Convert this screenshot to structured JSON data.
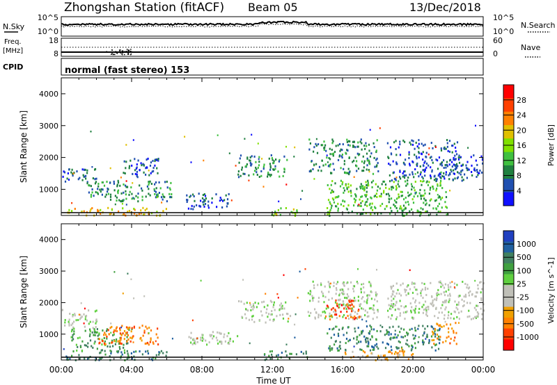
{
  "header": {
    "station": "Zhongshan Station (fitACF)",
    "beam": "Beam 05",
    "date": "13/Dec/2018"
  },
  "top_strips": {
    "nsky": {
      "label": "N.Sky",
      "left_ticks": [
        "10^5",
        "10^0"
      ],
      "right_label": "N.Search",
      "right_ticks": [
        "10^5",
        "10^0"
      ]
    },
    "freq": {
      "label_line1": "Freq.",
      "label_line2": "[MHz]",
      "left_ticks": [
        "18",
        "8"
      ],
      "right_label": "Nave",
      "right_ticks": [
        "60",
        "0"
      ]
    },
    "cpid": {
      "label": "CPID",
      "text": "normal (fast stereo) 153"
    }
  },
  "chart_data": [
    {
      "type": "heatmap",
      "name": "power",
      "ylabel": "Slant Range [km]",
      "yticks": [
        "4000",
        "3000",
        "2000",
        "1000"
      ],
      "ytick_values": [
        4000,
        3000,
        2000,
        1000
      ],
      "ylim": [
        180,
        4500
      ],
      "xlim": [
        0,
        24
      ],
      "colorbar_label": "Power [dB]",
      "colorbar_ticks": [
        "28",
        "24",
        "20",
        "16",
        "12",
        "8",
        "4"
      ],
      "colors": [
        "#ff0000",
        "#ff4000",
        "#ff8000",
        "#e0c000",
        "#80e000",
        "#40c040",
        "#208040",
        "#2050b0",
        "#1010ff"
      ],
      "blobs": [
        {
          "t0": 0.0,
          "t1": 2.0,
          "r0": 1200,
          "r1": 1700,
          "level": 7
        },
        {
          "t0": 0.2,
          "t1": 6.0,
          "r0": 200,
          "r1": 450,
          "level": 3
        },
        {
          "t0": 1.5,
          "t1": 6.3,
          "r0": 650,
          "r1": 1300,
          "level": 6
        },
        {
          "t0": 3.5,
          "t1": 5.5,
          "r0": 1400,
          "r1": 2000,
          "level": 7
        },
        {
          "t0": 10.0,
          "t1": 12.8,
          "r0": 1400,
          "r1": 2100,
          "level": 6
        },
        {
          "t0": 11.5,
          "t1": 13.5,
          "r0": 200,
          "r1": 450,
          "level": 4
        },
        {
          "t0": 14.0,
          "t1": 18.0,
          "r0": 1500,
          "r1": 2600,
          "level": 6
        },
        {
          "t0": 15.0,
          "t1": 22.0,
          "r0": 200,
          "r1": 1300,
          "level": 5
        },
        {
          "t0": 18.5,
          "t1": 22.5,
          "r0": 1300,
          "r1": 2600,
          "level": 7
        },
        {
          "t0": 22.0,
          "t1": 24.0,
          "r0": 1300,
          "r1": 2100,
          "level": 7
        },
        {
          "t0": 7.0,
          "t1": 9.5,
          "r0": 400,
          "r1": 900,
          "level": 7
        }
      ]
    },
    {
      "type": "heatmap",
      "name": "velocity",
      "ylabel": "Slant Range [km]",
      "yticks": [
        "4000",
        "3000",
        "2000",
        "1000"
      ],
      "ytick_values": [
        4000,
        3000,
        2000,
        1000
      ],
      "ylim": [
        180,
        4500
      ],
      "xlim": [
        0,
        24
      ],
      "xlabel": "Time UT",
      "xticks": [
        "00:00",
        "04:00",
        "08:00",
        "12:00",
        "16:00",
        "20:00",
        "00:00"
      ],
      "xtick_values": [
        0,
        4,
        8,
        12,
        16,
        20,
        24
      ],
      "colorbar_label": "Velocity [m s^-1]",
      "colorbar_ticks": [
        "1000",
        "500",
        "100",
        "25",
        "-25",
        "-100",
        "-500",
        "-1000"
      ],
      "colors": [
        "#2040c0",
        "#2060a0",
        "#408060",
        "#40a040",
        "#60d040",
        "#c0c0b8",
        "#c0c0b8",
        "#f0a000",
        "#ff8000",
        "#ff4000",
        "#ff0000"
      ],
      "blobs": [
        {
          "t0": 0.0,
          "t1": 2.0,
          "r0": 1200,
          "r1": 1800,
          "level": 5
        },
        {
          "t0": 0.2,
          "t1": 6.0,
          "r0": 200,
          "r1": 500,
          "level": 2
        },
        {
          "t0": 0.5,
          "t1": 4.0,
          "r0": 500,
          "r1": 1200,
          "level": 3
        },
        {
          "t0": 2.0,
          "t1": 5.5,
          "r0": 700,
          "r1": 1300,
          "level": 8
        },
        {
          "t0": 7.0,
          "t1": 10.0,
          "r0": 700,
          "r1": 1100,
          "level": 5
        },
        {
          "t0": 10.0,
          "t1": 13.0,
          "r0": 1400,
          "r1": 2100,
          "level": 5
        },
        {
          "t0": 11.5,
          "t1": 14.0,
          "r0": 200,
          "r1": 500,
          "level": 2
        },
        {
          "t0": 14.0,
          "t1": 18.0,
          "r0": 1500,
          "r1": 2700,
          "level": 5
        },
        {
          "t0": 15.0,
          "t1": 17.0,
          "r0": 1500,
          "r1": 2100,
          "level": 9
        },
        {
          "t0": 15.0,
          "t1": 21.5,
          "r0": 500,
          "r1": 1300,
          "level": 2
        },
        {
          "t0": 16.0,
          "t1": 20.0,
          "r0": 200,
          "r1": 500,
          "level": 7
        },
        {
          "t0": 18.5,
          "t1": 24.0,
          "r0": 1500,
          "r1": 2700,
          "level": 5
        },
        {
          "t0": 21.0,
          "t1": 22.5,
          "r0": 700,
          "r1": 1400,
          "level": 8
        }
      ]
    }
  ]
}
